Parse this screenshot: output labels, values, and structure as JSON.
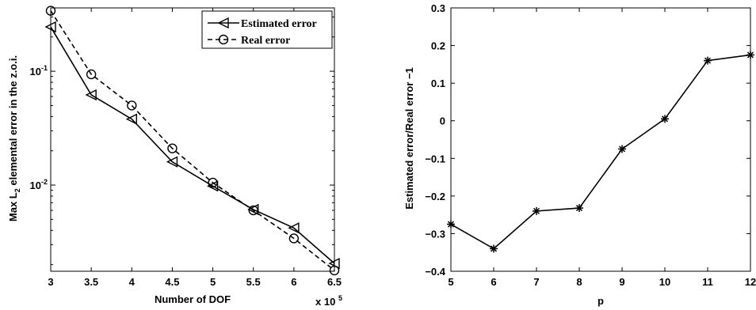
{
  "chart_data": [
    {
      "type": "line",
      "title": "",
      "xlabel": "Number of DOF",
      "xscale_label": "x 10",
      "xscale_exp": "5",
      "ylabel_prefix": "Max L",
      "ylabel_sub": "2",
      "ylabel_suffix": " elemental error in the z.o.i.",
      "yscale": "log",
      "xlim": [
        3,
        6.5
      ],
      "ylim": [
        0.00175,
        0.36
      ],
      "xticks": [
        3,
        3.5,
        4,
        4.5,
        5,
        5.5,
        6,
        6.5
      ],
      "xtick_labels": [
        "3",
        "3.5",
        "4",
        "4.5",
        "5",
        "5.5",
        "6",
        "6.5"
      ],
      "yticks": [
        0.01,
        0.1
      ],
      "ytick_labels": [
        {
          "base": "10",
          "exp": "-2"
        },
        {
          "base": "10",
          "exp": "-1"
        }
      ],
      "legend_position": "top-right",
      "series": [
        {
          "name": "Estimated error",
          "style": "solid",
          "marker": "triangle-left",
          "x": [
            3,
            3.5,
            4,
            4.5,
            5,
            5.5,
            6,
            6.5
          ],
          "y": [
            0.245,
            0.062,
            0.038,
            0.016,
            0.0098,
            0.0061,
            0.0042,
            0.00205
          ]
        },
        {
          "name": "Real error",
          "style": "dashed",
          "marker": "circle",
          "x": [
            3,
            3.5,
            4,
            4.5,
            5,
            5.5,
            6,
            6.5
          ],
          "y": [
            0.34,
            0.094,
            0.05,
            0.021,
            0.0105,
            0.006,
            0.0034,
            0.00178
          ]
        }
      ]
    },
    {
      "type": "line",
      "title": "",
      "xlabel": "p",
      "ylabel": "Estimated error/Real error −1",
      "xlim": [
        5,
        12
      ],
      "ylim": [
        -0.4,
        0.3
      ],
      "xticks": [
        5,
        6,
        7,
        8,
        9,
        10,
        11,
        12
      ],
      "xtick_labels": [
        "5",
        "6",
        "7",
        "8",
        "9",
        "10",
        "11",
        "12"
      ],
      "yticks": [
        -0.4,
        -0.3,
        -0.2,
        -0.1,
        0,
        0.1,
        0.2,
        0.3
      ],
      "ytick_labels": [
        "−0.4",
        "−0.3",
        "−0.2",
        "−0.1",
        "0",
        "0.1",
        "0.2",
        "0.3"
      ],
      "series": [
        {
          "style": "solid",
          "marker": "star",
          "x": [
            5,
            6,
            7,
            8,
            9,
            10,
            11,
            12
          ],
          "y": [
            -0.275,
            -0.34,
            -0.24,
            -0.232,
            -0.075,
            0.005,
            0.16,
            0.175
          ]
        }
      ]
    }
  ]
}
